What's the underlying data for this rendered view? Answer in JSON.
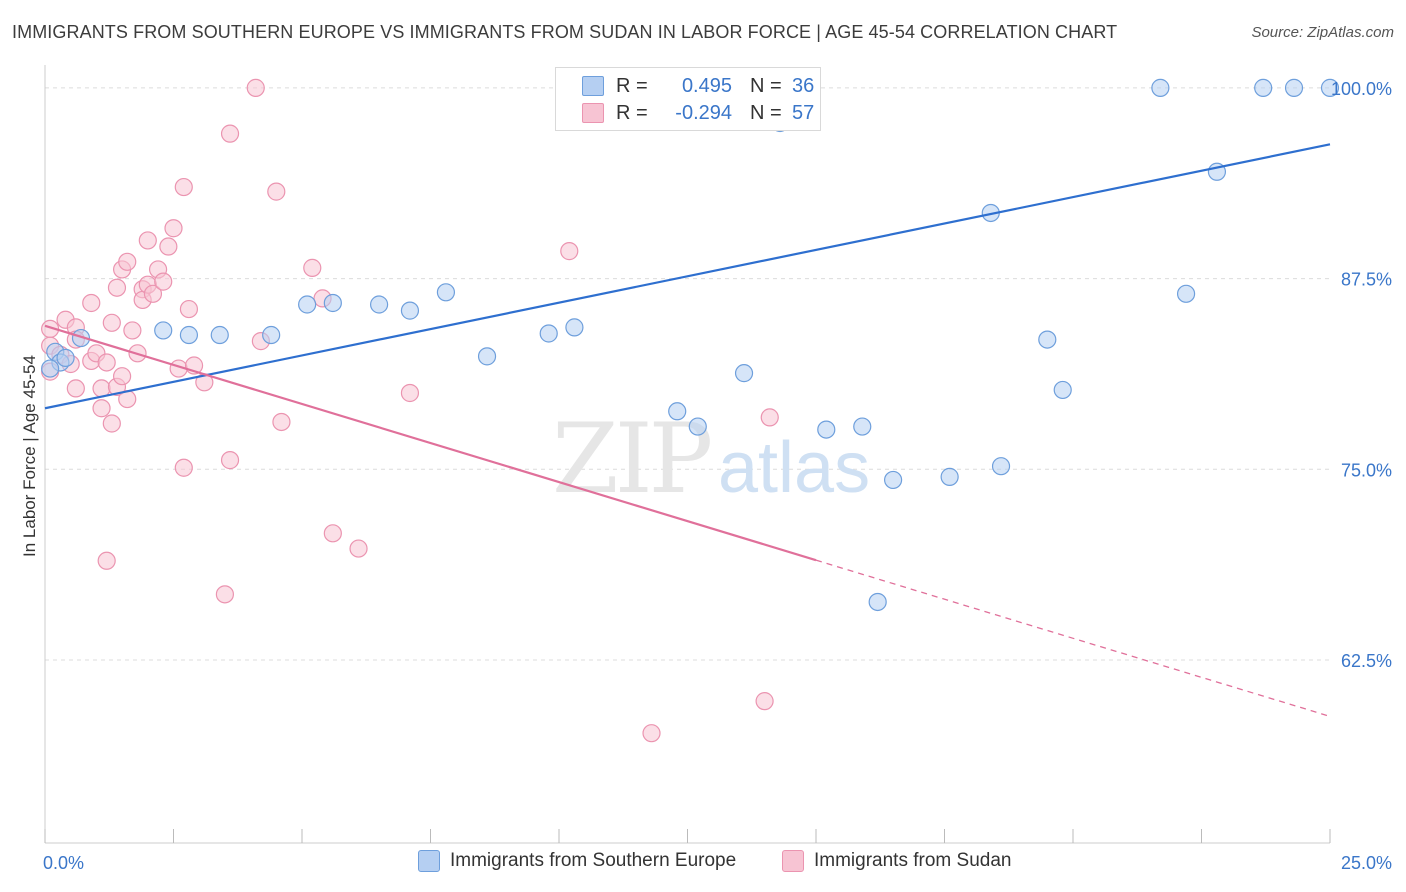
{
  "title": "IMMIGRANTS FROM SOUTHERN EUROPE VS IMMIGRANTS FROM SUDAN IN LABOR FORCE | AGE 45-54 CORRELATION CHART",
  "source": "Source: ZipAtlas.com",
  "watermark": {
    "zip": "ZIP",
    "atlas": "atlas"
  },
  "legend": {
    "row1": {
      "r_label": "R =",
      "r_value": "0.495",
      "n_label": "N =",
      "n_value": "36"
    },
    "row2": {
      "r_label": "R =",
      "r_value": "-0.294",
      "n_label": "N =",
      "n_value": "57"
    }
  },
  "colors": {
    "blue_fill": "#b5cff2",
    "blue_stroke": "#6e9fdc",
    "blue_line": "#2e6fcf",
    "pink_fill": "#f7c4d3",
    "pink_stroke": "#eb94b0",
    "pink_line": "#e0709a",
    "grid": "#dcdcdc",
    "tick_label": "#3a76c9"
  },
  "chart_data": {
    "type": "scatter",
    "xlabel": "",
    "ylabel": "In Labor Force | Age 45-54",
    "xlim": [
      0,
      25
    ],
    "ylim": [
      50.5,
      101.5
    ],
    "x_tick_labels": [
      {
        "value": 0,
        "label": "0.0%"
      },
      {
        "value": 25,
        "label": "25.0%"
      }
    ],
    "y_tick_labels": [
      {
        "value": 100,
        "label": "100.0%"
      },
      {
        "value": 87.5,
        "label": "87.5%"
      },
      {
        "value": 75,
        "label": "75.0%"
      },
      {
        "value": 62.5,
        "label": "62.5%"
      }
    ],
    "series": [
      {
        "name": "Immigrants from Southern Europe",
        "color": "blue",
        "trend": {
          "x0": 0,
          "y0": 79.0,
          "x1": 25,
          "y1": 96.3,
          "solid_to": 25
        },
        "points": [
          [
            0.2,
            82.7
          ],
          [
            0.3,
            82.0
          ],
          [
            0.4,
            82.3
          ],
          [
            0.1,
            81.6
          ],
          [
            0.7,
            83.6
          ],
          [
            2.3,
            84.1
          ],
          [
            2.8,
            83.8
          ],
          [
            3.4,
            83.8
          ],
          [
            4.4,
            83.8
          ],
          [
            5.1,
            85.8
          ],
          [
            5.6,
            85.9
          ],
          [
            6.5,
            85.8
          ],
          [
            7.1,
            85.4
          ],
          [
            7.8,
            86.6
          ],
          [
            8.6,
            82.4
          ],
          [
            9.8,
            83.9
          ],
          [
            10.3,
            84.3
          ],
          [
            12.3,
            78.8
          ],
          [
            12.7,
            77.8
          ],
          [
            13.6,
            81.3
          ],
          [
            14.3,
            97.7
          ],
          [
            15.2,
            77.6
          ],
          [
            15.9,
            77.8
          ],
          [
            16.2,
            66.3
          ],
          [
            16.5,
            74.3
          ],
          [
            17.6,
            74.5
          ],
          [
            18.4,
            91.8
          ],
          [
            18.6,
            75.2
          ],
          [
            19.5,
            83.5
          ],
          [
            19.8,
            80.2
          ],
          [
            21.7,
            100.0
          ],
          [
            22.2,
            86.5
          ],
          [
            22.8,
            94.5
          ],
          [
            23.7,
            100.0
          ],
          [
            24.3,
            100.0
          ],
          [
            25.0,
            100.0
          ]
        ]
      },
      {
        "name": "Immigrants from Sudan",
        "color": "pink",
        "trend": {
          "x0": 0,
          "y0": 84.4,
          "x1": 25,
          "y1": 58.8,
          "solid_to": 15
        },
        "points": [
          [
            0.1,
            84.2
          ],
          [
            0.1,
            83.1
          ],
          [
            0.1,
            81.4
          ],
          [
            0.3,
            82.5
          ],
          [
            0.4,
            84.8
          ],
          [
            0.5,
            81.9
          ],
          [
            0.6,
            84.3
          ],
          [
            0.6,
            83.5
          ],
          [
            0.6,
            80.3
          ],
          [
            0.9,
            82.1
          ],
          [
            1.0,
            82.6
          ],
          [
            0.9,
            85.9
          ],
          [
            1.1,
            80.3
          ],
          [
            1.2,
            82.0
          ],
          [
            1.3,
            84.6
          ],
          [
            1.4,
            86.9
          ],
          [
            1.1,
            79.0
          ],
          [
            1.3,
            78.0
          ],
          [
            1.4,
            80.4
          ],
          [
            1.6,
            79.6
          ],
          [
            1.5,
            81.1
          ],
          [
            1.7,
            84.1
          ],
          [
            1.8,
            82.6
          ],
          [
            1.9,
            86.8
          ],
          [
            1.5,
            88.1
          ],
          [
            1.2,
            69.0
          ],
          [
            1.9,
            86.1
          ],
          [
            2.0,
            87.1
          ],
          [
            2.1,
            86.5
          ],
          [
            2.2,
            88.1
          ],
          [
            2.3,
            87.3
          ],
          [
            1.6,
            88.6
          ],
          [
            2.0,
            90.0
          ],
          [
            2.6,
            81.6
          ],
          [
            2.4,
            89.6
          ],
          [
            2.5,
            90.8
          ],
          [
            2.7,
            93.5
          ],
          [
            2.7,
            75.1
          ],
          [
            2.8,
            85.5
          ],
          [
            2.9,
            81.8
          ],
          [
            3.1,
            80.7
          ],
          [
            3.5,
            66.8
          ],
          [
            3.6,
            97.0
          ],
          [
            3.6,
            75.6
          ],
          [
            4.1,
            100.0
          ],
          [
            4.2,
            83.4
          ],
          [
            4.5,
            93.2
          ],
          [
            4.6,
            78.1
          ],
          [
            5.2,
            88.2
          ],
          [
            5.4,
            86.2
          ],
          [
            5.6,
            70.8
          ],
          [
            6.1,
            69.8
          ],
          [
            7.1,
            80.0
          ],
          [
            10.2,
            89.3
          ],
          [
            11.8,
            57.7
          ],
          [
            14.0,
            59.8
          ],
          [
            14.1,
            78.4
          ]
        ]
      }
    ],
    "grid": true,
    "legend_position": "top-center"
  }
}
